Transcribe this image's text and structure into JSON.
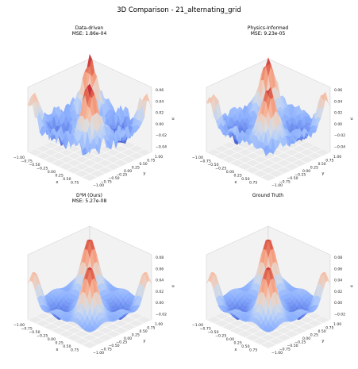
{
  "suptitle": "3D Comparison - 21_alternating_grid",
  "panels": [
    {
      "title": "Data-driven",
      "mse": "MSE: 1.86e-04"
    },
    {
      "title": "Physics-Informed",
      "mse": "MSE: 9.23e-05"
    },
    {
      "title": "D³M (Ours)",
      "mse": "MSE: 5.27e-08"
    },
    {
      "title": "Ground Truth",
      "mse": ""
    }
  ],
  "chart_data": [
    {
      "type": "surface",
      "title": "Data-driven",
      "subtitle": "MSE: 1.86e-04",
      "xlabel": "x",
      "ylabel": "y",
      "zlabel": "u",
      "x_ticks": [
        "−1.00",
        "−0.75",
        "−0.50",
        "−0.25",
        "0.00",
        "0.25",
        "0.50",
        "0.75"
      ],
      "y_ticks": [
        "−1.00",
        "−0.75",
        "−0.50",
        "−0.25",
        "0.00",
        "0.25",
        "0.50",
        "0.75",
        "1.00"
      ],
      "z_ticks": [
        "−0.04",
        "−0.02",
        "0.00",
        "0.02",
        "0.04",
        "0.06"
      ],
      "xlim": [
        -1,
        1
      ],
      "ylim": [
        -1,
        1
      ],
      "zlim": [
        -0.05,
        0.065
      ],
      "noise": 0.012,
      "colormap": "coolwarm"
    },
    {
      "type": "surface",
      "title": "Physics-Informed",
      "subtitle": "MSE: 9.23e-05",
      "xlabel": "x",
      "ylabel": "y",
      "zlabel": "u",
      "x_ticks": [
        "−1.00",
        "−0.75",
        "−0.50",
        "−0.25",
        "0.00",
        "0.25",
        "0.50",
        "0.75"
      ],
      "y_ticks": [
        "−1.00",
        "−0.75",
        "−0.50",
        "−0.25",
        "0.00",
        "0.25",
        "0.50",
        "0.75",
        "1.00"
      ],
      "z_ticks": [
        "−0.04",
        "−0.02",
        "0.00",
        "0.02",
        "0.04",
        "0.06"
      ],
      "xlim": [
        -1,
        1
      ],
      "ylim": [
        -1,
        1
      ],
      "zlim": [
        -0.05,
        0.065
      ],
      "noise": 0.008,
      "colormap": "coolwarm"
    },
    {
      "type": "surface",
      "title": "D³M (Ours)",
      "subtitle": "MSE: 5.27e-08",
      "xlabel": "x",
      "ylabel": "y",
      "zlabel": "u",
      "x_ticks": [
        "−1.00",
        "−0.75",
        "−0.50",
        "−0.25",
        "0.00",
        "0.25",
        "0.50",
        "0.75"
      ],
      "y_ticks": [
        "−1.00",
        "−0.75",
        "−0.50",
        "−0.25",
        "0.00",
        "0.25",
        "0.50",
        "0.75",
        "1.00"
      ],
      "z_ticks": [
        "−0.02",
        "0.00",
        "0.02",
        "0.04",
        "0.06",
        "0.08"
      ],
      "xlim": [
        -1,
        1
      ],
      "ylim": [
        -1,
        1
      ],
      "zlim": [
        -0.03,
        0.085
      ],
      "noise": 0.0,
      "colormap": "coolwarm"
    },
    {
      "type": "surface",
      "title": "Ground Truth",
      "subtitle": "",
      "xlabel": "x",
      "ylabel": "y",
      "zlabel": "u",
      "x_ticks": [
        "−1.00",
        "−0.75",
        "−0.50",
        "−0.25",
        "0.00",
        "0.25",
        "0.50",
        "0.75"
      ],
      "y_ticks": [
        "−1.00",
        "−0.75",
        "−0.50",
        "−0.25",
        "0.00",
        "0.25",
        "0.50",
        "0.75",
        "1.00"
      ],
      "z_ticks": [
        "−0.02",
        "0.00",
        "0.02",
        "0.04",
        "0.06",
        "0.08"
      ],
      "xlim": [
        -1,
        1
      ],
      "ylim": [
        -1,
        1
      ],
      "zlim": [
        -0.03,
        0.085
      ],
      "noise": 0.0,
      "colormap": "coolwarm"
    }
  ]
}
